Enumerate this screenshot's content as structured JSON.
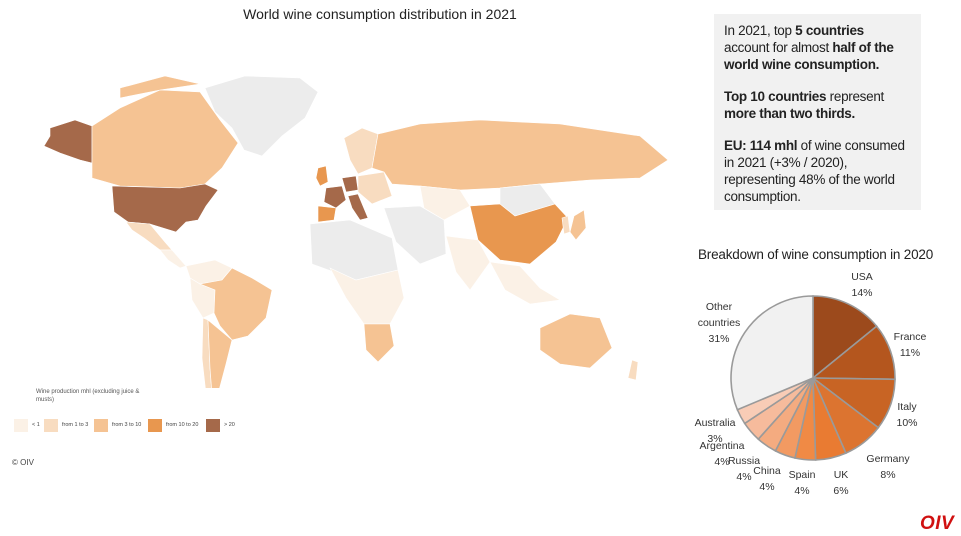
{
  "map": {
    "title": "World wine consumption distribution in 2021",
    "legend_title": "Wine production mhl (excluding juice & musts)",
    "legend": [
      {
        "label": "< 1",
        "color": "#fbf1e6"
      },
      {
        "label": "from 1 to 3",
        "color": "#f8dcc0"
      },
      {
        "label": "from 3 to 10",
        "color": "#f5c393"
      },
      {
        "label": "from 10 to 20",
        "color": "#e8974f"
      },
      {
        "label": "> 20",
        "color": "#a5694a"
      }
    ],
    "no_data_color": "#ececec",
    "copyright": "© OIV"
  },
  "info": {
    "p1": {
      "a": "In 2021, top ",
      "b": "5 countries",
      "c": " account for almost ",
      "d": "half of the world wine consumption."
    },
    "p2": {
      "a": "Top 10 countries",
      "b": " represent ",
      "c": "more than two thirds."
    },
    "p3": {
      "a": "EU: 114 mhl",
      "b": " of wine consumed in 2021 (+3% / 2020), representing 48% of the world consumption."
    }
  },
  "chart_data": {
    "type": "pie",
    "title": "Breakdown of wine consumption in 2020",
    "slices": [
      {
        "label": "USA",
        "value": 14,
        "display": "14%",
        "color": "#9c4a1c"
      },
      {
        "label": "France",
        "value": 11,
        "display": "11%",
        "color": "#b4561e"
      },
      {
        "label": "Italy",
        "value": 10,
        "display": "10%",
        "color": "#c86424"
      },
      {
        "label": "Germany",
        "value": 8,
        "display": "8%",
        "color": "#dc7430"
      },
      {
        "label": "UK",
        "value": 6,
        "display": "6%",
        "color": "#e97b32"
      },
      {
        "label": "Spain",
        "value": 4,
        "display": "4%",
        "color": "#f08a45"
      },
      {
        "label": "China",
        "value": 4,
        "display": "4%",
        "color": "#f29a62"
      },
      {
        "label": "Russia",
        "value": 4,
        "display": "4%",
        "color": "#f4ab80"
      },
      {
        "label": "Argentina",
        "value": 4,
        "display": "4%",
        "color": "#f6bb9c"
      },
      {
        "label": "Australia",
        "value": 3,
        "display": "3%",
        "color": "#f8ccb6"
      },
      {
        "label": "Other countries",
        "value": 31,
        "display": "31%",
        "color": "#f1f1f1"
      }
    ]
  },
  "brand": {
    "logo_text": "OIV"
  }
}
